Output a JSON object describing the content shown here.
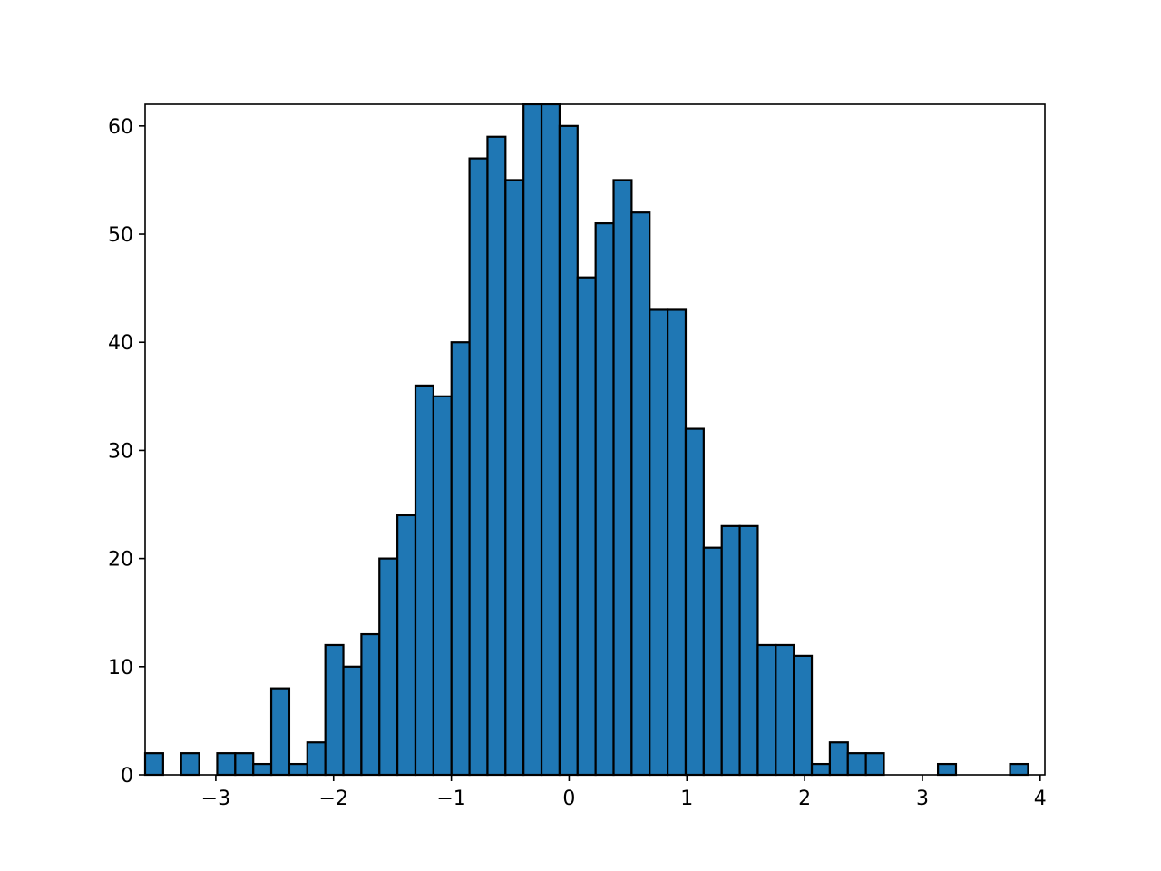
{
  "chart_data": {
    "type": "bar",
    "title": "",
    "xlabel": "",
    "ylabel": "",
    "xlim": [
      -3.6,
      4.04
    ],
    "ylim": [
      0,
      62
    ],
    "grid": false,
    "legend": "none",
    "bar_color": "#1f77b4",
    "edge_color": "#000000",
    "bin_start": -3.6,
    "bin_width": 0.153,
    "values": [
      2,
      0,
      2,
      0,
      2,
      2,
      1,
      8,
      1,
      3,
      12,
      10,
      13,
      20,
      24,
      36,
      35,
      40,
      57,
      59,
      55,
      62,
      62,
      60,
      46,
      51,
      55,
      52,
      43,
      43,
      32,
      21,
      23,
      23,
      12,
      12,
      11,
      1,
      3,
      2,
      2,
      0,
      0,
      0,
      1,
      0,
      0,
      0,
      1
    ],
    "x_ticks": [
      -3,
      -2,
      -1,
      0,
      1,
      2,
      3,
      4
    ],
    "x_tick_labels": [
      "−3",
      "−2",
      "−1",
      "0",
      "1",
      "2",
      "3",
      "4"
    ],
    "y_ticks": [
      0,
      10,
      20,
      30,
      40,
      50,
      60
    ],
    "y_tick_labels": [
      "0",
      "10",
      "20",
      "30",
      "40",
      "50",
      "60"
    ]
  }
}
